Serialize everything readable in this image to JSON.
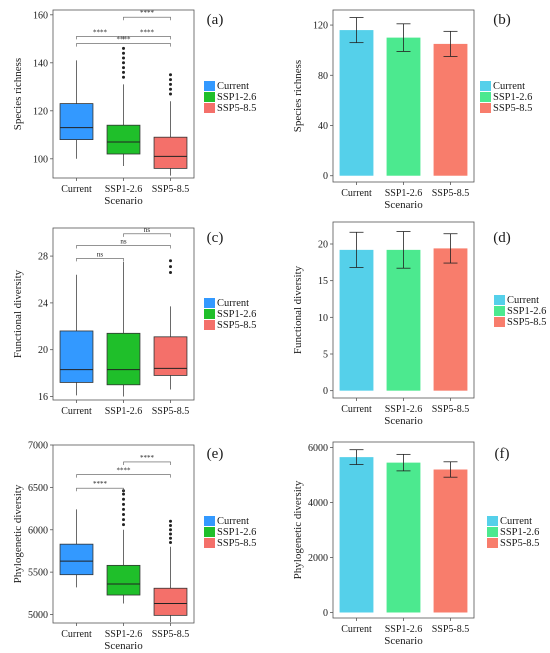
{
  "colors": {
    "current": "#3399ff",
    "ssp126": "#1fbf2a",
    "ssp585": "#f4706a",
    "current_bar": "#55d0ea",
    "ssp126_bar": "#4ce98f",
    "ssp585_bar": "#f87d6c"
  },
  "chart_data": [
    {
      "id": "a",
      "type": "box",
      "panel_label": "(a)",
      "ylabel": "Species richness",
      "xlabel": "Scenario",
      "ylim": [
        92,
        162
      ],
      "yticks": [
        100,
        120,
        140,
        160
      ],
      "categories": [
        "Current",
        "SSP1-2.6",
        "SSP5-8.5"
      ],
      "legend": [
        "Current",
        "SSP1-2.6",
        "SSP5-8.5"
      ],
      "boxes": [
        {
          "q1": 108,
          "median": 113,
          "q3": 123,
          "whisker_low": 100,
          "whisker_high": 141,
          "outliers": []
        },
        {
          "q1": 102,
          "median": 107,
          "q3": 114,
          "whisker_low": 97,
          "whisker_high": 131,
          "outliers": [
            134,
            136,
            138,
            140,
            142,
            144,
            146
          ]
        },
        {
          "q1": 96,
          "median": 101,
          "q3": 109,
          "whisker_low": 93,
          "whisker_high": 124,
          "outliers": [
            127,
            129,
            131,
            133,
            135
          ]
        }
      ],
      "comparisons": [
        {
          "from": 1,
          "to": 2,
          "label": "****",
          "y": 159
        },
        {
          "from": 0,
          "to": 1,
          "label": "****",
          "y": 151
        },
        {
          "from": 1,
          "to": 2,
          "label": "****",
          "y": 151
        },
        {
          "from": 0,
          "to": 2,
          "label": "****",
          "y": 148
        }
      ]
    },
    {
      "id": "b",
      "type": "bar",
      "panel_label": "(b)",
      "ylabel": "Species richness",
      "xlabel": "Scenario",
      "ylim": [
        -5,
        132
      ],
      "yticks": [
        0,
        40,
        80,
        120
      ],
      "categories": [
        "Current",
        "SSP1-2.6",
        "SSP5-8.5"
      ],
      "legend": [
        "Current",
        "SSP1-2.6",
        "SSP5-8.5"
      ],
      "values": [
        116,
        110,
        105
      ],
      "errors": [
        10,
        11,
        10
      ]
    },
    {
      "id": "c",
      "type": "box",
      "panel_label": "(c)",
      "ylabel": "Functional diversity",
      "xlabel": "",
      "ylim": [
        15.7,
        30.4
      ],
      "yticks": [
        16,
        20,
        24,
        28
      ],
      "categories": [
        "Current",
        "SSP1-2.6",
        "SSP5-8.5"
      ],
      "legend": [
        "Current",
        "SSP1-2.6",
        "SSP5-8.5"
      ],
      "boxes": [
        {
          "q1": 17.2,
          "median": 18.3,
          "q3": 21.6,
          "whisker_low": 16.1,
          "whisker_high": 26.4,
          "outliers": []
        },
        {
          "q1": 17.0,
          "median": 18.3,
          "q3": 21.4,
          "whisker_low": 16.0,
          "whisker_high": 27.5,
          "outliers": []
        },
        {
          "q1": 17.8,
          "median": 18.4,
          "q3": 21.1,
          "whisker_low": 16.6,
          "whisker_high": 23.7,
          "outliers": [
            26.6,
            27.1,
            27.6
          ]
        }
      ],
      "comparisons": [
        {
          "from": 1,
          "to": 2,
          "label": "ns",
          "y": 29.9
        },
        {
          "from": 0,
          "to": 2,
          "label": "ns",
          "y": 28.9
        },
        {
          "from": 0,
          "to": 1,
          "label": "ns",
          "y": 27.8
        }
      ]
    },
    {
      "id": "d",
      "type": "bar",
      "panel_label": "(d)",
      "ylabel": "Functional diversity",
      "xlabel": "Scenario",
      "ylim": [
        -1,
        23
      ],
      "yticks": [
        0,
        5,
        10,
        15,
        20
      ],
      "categories": [
        "Current",
        "SSP1-2.6",
        "SSP5-8.5"
      ],
      "legend": [
        "Current",
        "SSP1-2.6",
        "SSP5-8.5"
      ],
      "values": [
        19.2,
        19.2,
        19.4
      ],
      "errors": [
        2.4,
        2.5,
        2.0
      ]
    },
    {
      "id": "e",
      "type": "box",
      "panel_label": "(e)",
      "ylabel": "Phylogenetic diversity",
      "xlabel": "Scenario",
      "ylim": [
        4900,
        7000
      ],
      "yticks": [
        5000,
        5500,
        6000,
        6500,
        7000
      ],
      "categories": [
        "Current",
        "SSP1-2.6",
        "SSP5-8.5"
      ],
      "legend": [
        "Current",
        "SSP1-2.6",
        "SSP5-8.5"
      ],
      "boxes": [
        {
          "q1": 5470,
          "median": 5630,
          "q3": 5830,
          "whisker_low": 5320,
          "whisker_high": 6240,
          "outliers": []
        },
        {
          "q1": 5230,
          "median": 5360,
          "q3": 5580,
          "whisker_low": 5130,
          "whisker_high": 6000,
          "outliers": [
            6060,
            6120,
            6180,
            6240,
            6300,
            6360,
            6420,
            6460
          ]
        },
        {
          "q1": 4990,
          "median": 5130,
          "q3": 5310,
          "whisker_low": 4910,
          "whisker_high": 5800,
          "outliers": [
            5850,
            5900,
            5950,
            6000,
            6050,
            6100
          ]
        }
      ],
      "comparisons": [
        {
          "from": 1,
          "to": 2,
          "label": "****",
          "y": 6800
        },
        {
          "from": 0,
          "to": 2,
          "label": "****",
          "y": 6650
        },
        {
          "from": 0,
          "to": 1,
          "label": "****",
          "y": 6490
        }
      ]
    },
    {
      "id": "f",
      "type": "bar",
      "panel_label": "(f)",
      "ylabel": "Phylogenetic diversity",
      "xlabel": "Scenario",
      "ylim": [
        -200,
        6200
      ],
      "yticks": [
        0,
        2000,
        4000,
        6000
      ],
      "categories": [
        "Current",
        "SSP1-2.6",
        "SSP5-8.5"
      ],
      "legend": [
        "Current",
        "SSP1-2.6",
        "SSP5-8.5"
      ],
      "values": [
        5650,
        5450,
        5200
      ],
      "errors": [
        270,
        300,
        280
      ]
    }
  ]
}
